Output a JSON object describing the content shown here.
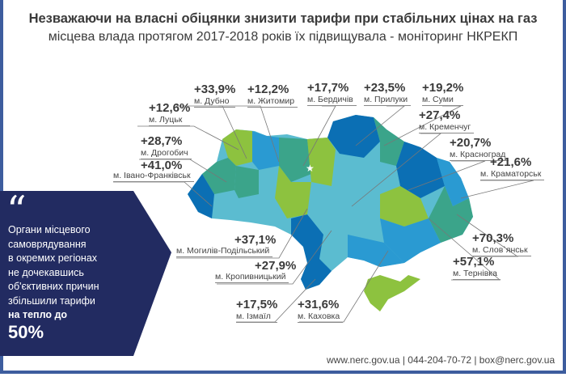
{
  "header": {
    "title": "Незважаючи на власні обіцянки знизити тарифи при стабільних цінах на газ",
    "subtitle": "місцева влада протягом 2017-2018 років їх підвищувала - моніторинг НКРЕКП"
  },
  "cities": [
    {
      "value": "+33,9%",
      "city": "м. Дубно"
    },
    {
      "value": "+12,2%",
      "city": "м. Житомир"
    },
    {
      "value": "+17,7%",
      "city": "м. Бердичів"
    },
    {
      "value": "+23,5%",
      "city": "м. Прилуки"
    },
    {
      "value": "+19,2%",
      "city": "м. Суми"
    },
    {
      "value": "+12,6%",
      "city": "м. Луцьк"
    },
    {
      "value": "+27,4%",
      "city": "м. Кременчуг"
    },
    {
      "value": "+28,7%",
      "city": "м. Дрогобич"
    },
    {
      "value": "+20,7%",
      "city": "м. Красноград"
    },
    {
      "value": "+41,0%",
      "city": "м. Івано-Франківськ"
    },
    {
      "value": "+21,6%",
      "city": "м. Краматорськ"
    },
    {
      "value": "+37,1%",
      "city": "м. Могилів-Подільський"
    },
    {
      "value": "+70,3%",
      "city": "м. Слов`янськ"
    },
    {
      "value": "+27,9%",
      "city": "м. Кропивницький"
    },
    {
      "value": "+57,1%",
      "city": "м. Тернівка"
    },
    {
      "value": "+17,5%",
      "city": "м. Ізмаїл"
    },
    {
      "value": "+31,6%",
      "city": "м. Каховка"
    }
  ],
  "quote": {
    "icon": "quote-icon",
    "lines": [
      "Органи місцевого",
      "самоврядування",
      "в окремих регіонах",
      "не дочекавшись",
      "об'єктивних причин",
      "збільшили тарифи"
    ],
    "bold_line": "на тепло до",
    "highlight": "50%"
  },
  "footer": "www.nerc.gov.ua | 044-204-70-72 | box@nerc.gov.ua",
  "colors": {
    "navy": "#222b61",
    "frame": "#3d5d9e",
    "green": "#8dc23f",
    "teal": "#3ba48a",
    "blue": "#2a9ad2",
    "darkblue": "#0b6fb4",
    "light": "#5bbcd0"
  }
}
